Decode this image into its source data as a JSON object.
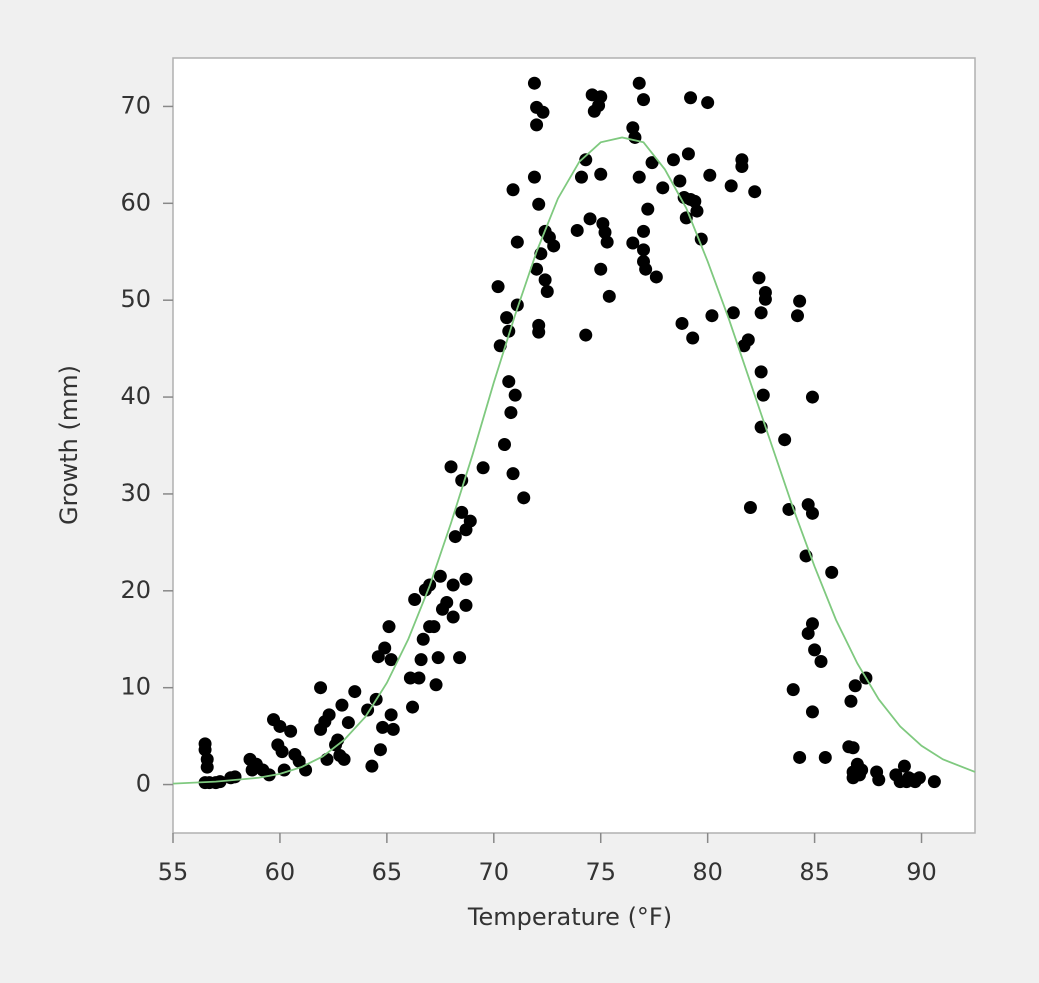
{
  "chart_data": {
    "type": "scatter",
    "x_label": "Temperature (°F)",
    "y_label": "Growth (mm)",
    "xlim": [
      55,
      92.5
    ],
    "ylim": [
      -5,
      75
    ],
    "xticks": [
      55,
      60,
      65,
      70,
      75,
      80,
      85,
      90
    ],
    "yticks": [
      0,
      10,
      20,
      30,
      40,
      50,
      60,
      70
    ],
    "series": [
      {
        "type": "scatter",
        "color": "#000000",
        "x": [
          56.5,
          56.5,
          56.6,
          56.6,
          56.5,
          56.7,
          57,
          57.2,
          57.7,
          57.9,
          58.6,
          58.7,
          58.9,
          59.2,
          59.5,
          59.7,
          60,
          59.9,
          60.1,
          60.2,
          60.5,
          60.7,
          60.9,
          61.2,
          61.9,
          61.9,
          62.1,
          62.2,
          62.3,
          62.6,
          62.7,
          62.8,
          62.9,
          63,
          63.2,
          63.5,
          64.1,
          64.3,
          64.5,
          64.6,
          64.7,
          64.8,
          64.9,
          65.1,
          65.2,
          65.2,
          65.3,
          66.1,
          66.2,
          66.3,
          66.5,
          66.6,
          66.7,
          66.8,
          67,
          67,
          67.2,
          67.3,
          67.4,
          67.5,
          67.6,
          67.8,
          68,
          68.1,
          68.1,
          68.2,
          68.4,
          68.5,
          68.5,
          68.7,
          68.7,
          68.7,
          68.9,
          69.5,
          70.2,
          70.3,
          70.5,
          70.6,
          70.7,
          70.7,
          70.8,
          70.9,
          70.9,
          71,
          71.1,
          71.1,
          71.4,
          71.9,
          71.9,
          72,
          72,
          72,
          72.1,
          72.1,
          72.1,
          72.2,
          72.3,
          72.4,
          72.4,
          72.5,
          72.6,
          72.8,
          73.9,
          74.1,
          74.3,
          74.3,
          74.5,
          74.6,
          74.7,
          74.9,
          75,
          75,
          75,
          75.1,
          75.2,
          75.3,
          75.4,
          76.5,
          76.5,
          76.6,
          76.8,
          76.8,
          77,
          77,
          77,
          77,
          77.1,
          77.2,
          77.4,
          77.6,
          77.9,
          78.4,
          78.7,
          78.8,
          78.9,
          79,
          79.1,
          79.2,
          79.2,
          79.3,
          79.4,
          79.5,
          79.7,
          80,
          80.1,
          80.2,
          81.1,
          81.2,
          81.6,
          81.6,
          81.7,
          81.9,
          82,
          82.2,
          82.4,
          82.5,
          82.5,
          82.6,
          82.5,
          82.7,
          82.7,
          83.6,
          83.8,
          84,
          84.2,
          84.3,
          84.3,
          84.6,
          84.7,
          84.7,
          84.9,
          84.9,
          84.9,
          84.9,
          85,
          85.3,
          85.5,
          85.8,
          86.6,
          86.7,
          86.8,
          86.8,
          86.8,
          86.9,
          87,
          87.1,
          87.2,
          87.4,
          87.9,
          88,
          88.8,
          89,
          89.2,
          89.3,
          89.4,
          89.6,
          89.7,
          89.9,
          90.6
        ],
        "values": [
          4.2,
          3.6,
          2.6,
          1.8,
          0.2,
          0.2,
          0.2,
          0.3,
          0.7,
          0.8,
          2.6,
          1.5,
          2.1,
          1.5,
          1,
          6.7,
          6,
          4.1,
          3.4,
          1.5,
          5.5,
          3.1,
          2.4,
          1.5,
          5.7,
          10,
          6.5,
          2.6,
          7.2,
          4.1,
          4.6,
          3,
          8.2,
          2.6,
          6.4,
          9.6,
          7.7,
          1.9,
          8.8,
          13.2,
          3.6,
          5.9,
          14.1,
          16.3,
          12.9,
          7.2,
          5.7,
          11,
          8,
          19.1,
          11,
          12.9,
          15,
          20.1,
          16.3,
          20.6,
          16.3,
          10.3,
          13.1,
          21.5,
          18.1,
          18.8,
          32.8,
          17.3,
          20.6,
          25.6,
          13.1,
          31.4,
          28.1,
          21.2,
          18.5,
          26.3,
          27.2,
          32.7,
          51.4,
          45.3,
          35.1,
          48.2,
          46.8,
          41.6,
          38.4,
          61.4,
          32.1,
          40.2,
          49.5,
          56,
          29.6,
          72.4,
          62.7,
          69.9,
          68.1,
          53.2,
          59.9,
          47.4,
          46.7,
          54.8,
          69.4,
          57.1,
          52.1,
          50.9,
          56.5,
          55.6,
          57.2,
          62.7,
          64.5,
          46.4,
          58.4,
          71.2,
          69.5,
          70.1,
          63,
          71,
          53.2,
          57.9,
          57,
          56,
          50.4,
          67.8,
          55.9,
          66.8,
          72.4,
          62.7,
          57.1,
          55.2,
          70.7,
          54,
          53.2,
          59.4,
          64.2,
          52.4,
          61.6,
          64.5,
          62.3,
          47.6,
          60.6,
          58.5,
          65.1,
          70.9,
          60.4,
          46.1,
          60.2,
          59.2,
          56.3,
          70.4,
          62.9,
          48.4,
          61.8,
          48.7,
          64.5,
          63.8,
          45.3,
          45.9,
          28.6,
          61.2,
          52.3,
          48.7,
          42.6,
          40.2,
          36.9,
          50.8,
          50.1,
          35.6,
          28.4,
          9.8,
          48.4,
          49.9,
          2.8,
          23.6,
          28.9,
          15.6,
          28,
          40,
          16.6,
          7.5,
          13.9,
          12.7,
          2.8,
          21.9,
          3.9,
          8.6,
          3.8,
          1.3,
          0.7,
          10.2,
          2.1,
          1,
          1.5,
          11,
          1.3,
          0.5,
          1,
          0.3,
          1.9,
          0.3,
          0.7,
          0.5,
          0.3,
          0.7,
          0.3
        ]
      },
      {
        "type": "line",
        "color": "#7fc97f",
        "x": [
          55,
          57,
          59,
          60,
          61,
          62,
          63,
          64,
          65,
          66,
          67,
          68,
          69,
          70,
          71,
          72,
          73,
          74,
          75,
          76,
          77,
          78,
          79,
          80,
          81,
          82,
          83,
          84,
          85,
          86,
          87,
          88,
          89,
          90,
          91,
          92.5
        ],
        "values": [
          0.1,
          0.3,
          0.7,
          1.1,
          1.8,
          2.9,
          4.6,
          7,
          10.5,
          15,
          20.5,
          27,
          34,
          41.5,
          48.5,
          55,
          60.5,
          64.3,
          66.3,
          66.8,
          66.3,
          63.5,
          59.5,
          54,
          48,
          41.5,
          35,
          28.5,
          22.5,
          17,
          12.5,
          8.8,
          6,
          4,
          2.6,
          1.3
        ]
      }
    ]
  }
}
